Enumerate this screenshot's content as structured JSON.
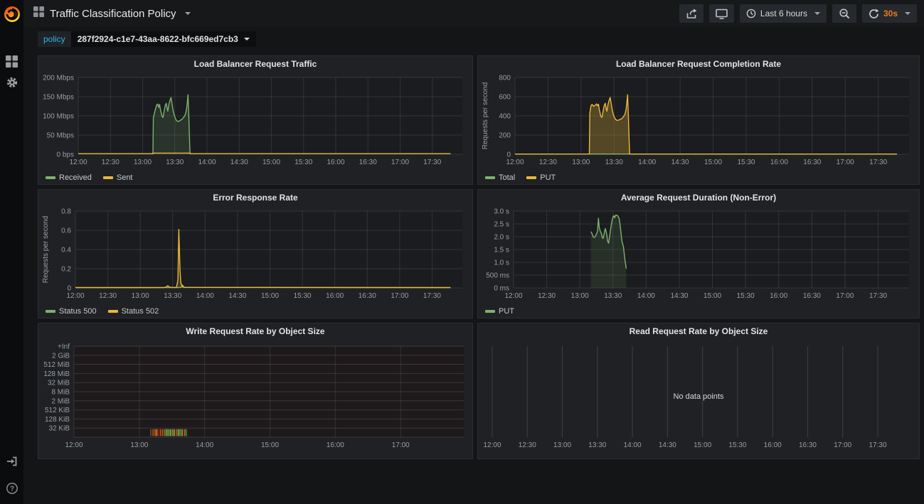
{
  "header": {
    "title": "Traffic Classification Policy",
    "time_range": "Last 6 hours",
    "refresh_interval": "30s"
  },
  "submenu": {
    "label": "policy",
    "value": "287f2924-c1e7-43aa-8622-bfc669ed7cb3"
  },
  "sidebar": {
    "icons": [
      "grafana-logo",
      "dashboards-icon",
      "settings-icon",
      "sign-in-icon",
      "help-icon"
    ]
  },
  "colors": {
    "accent_cyan": "#33b5e5",
    "accent_orange": "#eb7b18",
    "series_green": "#7eb26d",
    "series_yellow": "#eab839",
    "panel_bg": "#1f2124",
    "page_bg": "#141517",
    "grid": "#2b2d30"
  },
  "chart_data": [
    {
      "type": "area",
      "title": "Load Balancer Request Traffic",
      "ylabel": "",
      "xlim": [
        720,
        1078
      ],
      "ylim": [
        0,
        200
      ],
      "x_ticks": [
        [
          720,
          "12:00"
        ],
        [
          750,
          "12:30"
        ],
        [
          780,
          "13:00"
        ],
        [
          810,
          "13:30"
        ],
        [
          840,
          "14:00"
        ],
        [
          870,
          "14:30"
        ],
        [
          900,
          "15:00"
        ],
        [
          930,
          "15:30"
        ],
        [
          960,
          "16:00"
        ],
        [
          990,
          "16:30"
        ],
        [
          1020,
          "17:00"
        ],
        [
          1050,
          "17:30"
        ]
      ],
      "y_ticks": [
        [
          0,
          "0 bps"
        ],
        [
          50,
          "50 Mbps"
        ],
        [
          100,
          "100 Mbps"
        ],
        [
          150,
          "150 Mbps"
        ],
        [
          200,
          "200 Mbps"
        ]
      ],
      "series": [
        {
          "name": "Received",
          "color": "#7eb26d",
          "fill_opacity": 0.16,
          "points": [
            [
              789.6,
              0
            ],
            [
              790,
              96
            ],
            [
              791.5,
              112
            ],
            [
              793,
              128
            ],
            [
              794,
              131
            ],
            [
              795,
              122
            ],
            [
              795.8,
              130
            ],
            [
              796.5,
              118
            ],
            [
              798,
              99
            ],
            [
              799,
              96
            ],
            [
              800,
              112
            ],
            [
              801,
              126
            ],
            [
              802,
              133
            ],
            [
              802.8,
              120
            ],
            [
              803.5,
              112
            ],
            [
              804.5,
              130
            ],
            [
              805.5,
              141
            ],
            [
              806.5,
              148
            ],
            [
              807.5,
              130
            ],
            [
              808.5,
              112
            ],
            [
              810,
              97
            ],
            [
              811.5,
              88
            ],
            [
              813,
              85
            ],
            [
              815,
              88
            ],
            [
              817,
              92
            ],
            [
              818.5,
              97
            ],
            [
              820,
              105
            ],
            [
              821,
              118
            ],
            [
              821.8,
              140
            ],
            [
              822.3,
              155
            ],
            [
              823,
              100
            ],
            [
              823.8,
              30
            ],
            [
              824.2,
              0
            ]
          ]
        },
        {
          "name": "Sent",
          "color": "#eab839",
          "fill_opacity": 0,
          "points": [
            [
              720,
              1.5
            ],
            [
              789,
              1.5
            ],
            [
              790,
              3
            ],
            [
              824,
              3
            ],
            [
              825,
              1.5
            ],
            [
              1067,
              1.5
            ]
          ]
        }
      ]
    },
    {
      "type": "area",
      "title": "Load Balancer Request Completion Rate",
      "ylabel": "Requests per second",
      "xlim": [
        720,
        1078
      ],
      "ylim": [
        0,
        800
      ],
      "x_ticks": [
        [
          720,
          "12:00"
        ],
        [
          750,
          "12:30"
        ],
        [
          780,
          "13:00"
        ],
        [
          810,
          "13:30"
        ],
        [
          840,
          "14:00"
        ],
        [
          870,
          "14:30"
        ],
        [
          900,
          "15:00"
        ],
        [
          930,
          "15:30"
        ],
        [
          960,
          "16:00"
        ],
        [
          990,
          "16:30"
        ],
        [
          1020,
          "17:00"
        ],
        [
          1050,
          "17:30"
        ]
      ],
      "y_ticks": [
        [
          0,
          "0"
        ],
        [
          200,
          "200"
        ],
        [
          400,
          "400"
        ],
        [
          600,
          "600"
        ],
        [
          800,
          "800"
        ]
      ],
      "series": [
        {
          "name": "Total",
          "color": "#7eb26d",
          "fill_opacity": 0,
          "points": [
            [
              720,
              2
            ],
            [
              1067,
              2
            ]
          ]
        },
        {
          "name": "PUT",
          "color": "#eab839",
          "fill_opacity": 0.28,
          "points": [
            [
              720,
              2
            ],
            [
              787.5,
              3
            ],
            [
              788,
              430
            ],
            [
              789,
              505
            ],
            [
              790,
              520
            ],
            [
              791.5,
              500
            ],
            [
              793,
              512
            ],
            [
              794,
              525
            ],
            [
              795,
              505
            ],
            [
              795.8,
              522
            ],
            [
              796.5,
              470
            ],
            [
              798,
              395
            ],
            [
              799,
              385
            ],
            [
              800,
              448
            ],
            [
              801,
              505
            ],
            [
              802,
              532
            ],
            [
              802.8,
              480
            ],
            [
              803.5,
              448
            ],
            [
              804.5,
              520
            ],
            [
              805.5,
              562
            ],
            [
              806.5,
              592
            ],
            [
              807.5,
              520
            ],
            [
              808.5,
              448
            ],
            [
              810,
              390
            ],
            [
              811.5,
              362
            ],
            [
              813,
              352
            ],
            [
              815,
              360
            ],
            [
              817,
              372
            ],
            [
              818.5,
              390
            ],
            [
              820,
              420
            ],
            [
              821,
              472
            ],
            [
              821.8,
              560
            ],
            [
              822.3,
              620
            ],
            [
              823,
              400
            ],
            [
              823.8,
              120
            ],
            [
              824.2,
              2
            ],
            [
              1067,
              2
            ]
          ]
        }
      ]
    },
    {
      "type": "area",
      "title": "Error Response Rate",
      "ylabel": "Requests per second",
      "xlim": [
        720,
        1078
      ],
      "ylim": [
        0,
        0.8
      ],
      "x_ticks": [
        [
          720,
          "12:00"
        ],
        [
          750,
          "12:30"
        ],
        [
          780,
          "13:00"
        ],
        [
          810,
          "13:30"
        ],
        [
          840,
          "14:00"
        ],
        [
          870,
          "14:30"
        ],
        [
          900,
          "15:00"
        ],
        [
          930,
          "15:30"
        ],
        [
          960,
          "16:00"
        ],
        [
          990,
          "16:30"
        ],
        [
          1020,
          "17:00"
        ],
        [
          1050,
          "17:30"
        ]
      ],
      "y_ticks": [
        [
          0,
          "0"
        ],
        [
          0.2,
          "0.2"
        ],
        [
          0.4,
          "0.4"
        ],
        [
          0.6,
          "0.6"
        ],
        [
          0.8,
          "0.8"
        ]
      ],
      "series": [
        {
          "name": "Status 500",
          "color": "#7eb26d",
          "fill_opacity": 0.15,
          "points": [
            [
              720,
              0.003
            ],
            [
              815,
              0.003
            ],
            [
              817.5,
              0.006
            ],
            [
              818.5,
              0.018
            ],
            [
              819.2,
              0.03
            ],
            [
              820,
              0.012
            ],
            [
              821.5,
              0.005
            ],
            [
              1067,
              0.003
            ]
          ]
        },
        {
          "name": "Status 502",
          "color": "#eab839",
          "fill_opacity": 0.2,
          "points": [
            [
              720,
              0.004
            ],
            [
              802,
              0.004
            ],
            [
              804,
              0.01
            ],
            [
              805.5,
              0.022
            ],
            [
              807,
              0.008
            ],
            [
              809,
              0.005
            ],
            [
              813.5,
              0.006
            ],
            [
              814.8,
              0.08
            ],
            [
              815.7,
              0.61
            ],
            [
              816.8,
              0.18
            ],
            [
              817.6,
              0.05
            ],
            [
              819,
              0.012
            ],
            [
              821,
              0.006
            ],
            [
              1067,
              0.004
            ]
          ]
        }
      ]
    },
    {
      "type": "area",
      "title": "Average Request Duration (Non-Error)",
      "ylabel": "",
      "xlim": [
        720,
        1078
      ],
      "ylim": [
        0,
        3
      ],
      "x_ticks": [
        [
          720,
          "12:00"
        ],
        [
          750,
          "12:30"
        ],
        [
          780,
          "13:00"
        ],
        [
          810,
          "13:30"
        ],
        [
          840,
          "14:00"
        ],
        [
          870,
          "14:30"
        ],
        [
          900,
          "15:00"
        ],
        [
          930,
          "15:30"
        ],
        [
          960,
          "16:00"
        ],
        [
          990,
          "16:30"
        ],
        [
          1020,
          "17:00"
        ],
        [
          1050,
          "17:30"
        ]
      ],
      "y_ticks": [
        [
          0,
          "0 ms"
        ],
        [
          0.5,
          "500 ms"
        ],
        [
          1,
          "1.0 s"
        ],
        [
          1.5,
          "1.5 s"
        ],
        [
          2,
          "2.0 s"
        ],
        [
          2.5,
          "2.5 s"
        ],
        [
          3,
          "3.0 s"
        ]
      ],
      "series": [
        {
          "name": "PUT",
          "color": "#7eb26d",
          "fill_opacity": 0.13,
          "points": [
            [
              790,
              2.2
            ],
            [
              791,
              2.12
            ],
            [
              792,
              2.0
            ],
            [
              793,
              1.97
            ],
            [
              794,
              2.02
            ],
            [
              795,
              2.1
            ],
            [
              796,
              2.2
            ],
            [
              796.8,
              2.72
            ],
            [
              797.6,
              2.35
            ],
            [
              798.5,
              2.22
            ],
            [
              799.5,
              2.12
            ],
            [
              800.2,
              1.98
            ],
            [
              801,
              1.93
            ],
            [
              802,
              2.12
            ],
            [
              803,
              2.32
            ],
            [
              803.8,
              2.2
            ],
            [
              804.5,
              2.05
            ],
            [
              805.2,
              1.82
            ],
            [
              806,
              1.75
            ],
            [
              807,
              2.02
            ],
            [
              808,
              2.35
            ],
            [
              809,
              2.6
            ],
            [
              810,
              2.78
            ],
            [
              810.8,
              2.82
            ],
            [
              811.5,
              2.74
            ],
            [
              812.5,
              2.85
            ],
            [
              813.5,
              2.84
            ],
            [
              814.5,
              2.8
            ],
            [
              815.5,
              2.72
            ],
            [
              816.3,
              2.5
            ],
            [
              817,
              2.25
            ],
            [
              818,
              1.85
            ],
            [
              819.5,
              1.6
            ],
            [
              820.5,
              1.2
            ],
            [
              821.5,
              0.9
            ],
            [
              822,
              0.75
            ]
          ]
        }
      ]
    },
    {
      "type": "heatmap",
      "title": "Write Request Rate by Object Size",
      "xlim": [
        720,
        1078
      ],
      "x_ticks": [
        [
          720,
          "12:00"
        ],
        [
          780,
          "13:00"
        ],
        [
          840,
          "14:00"
        ],
        [
          900,
          "15:00"
        ],
        [
          960,
          "16:00"
        ],
        [
          1020,
          "17:00"
        ]
      ],
      "bucket_labels": [
        "+Inf",
        "2 GiB",
        "512 MiB",
        "128 MiB",
        "32 MiB",
        "8 MiB",
        "2 MiB",
        "512 KiB",
        "128 KiB",
        "32 KiB"
      ],
      "cells": {
        "bucket": "32 KiB",
        "start_minute": 790,
        "stripe_colors": [
          "#567d3e",
          "#3e2a1b",
          "#c96a1e",
          "#b12512",
          "#d2691e",
          "#c9a227",
          "#cc6b1f",
          "#a61f0f",
          "#8a1a0c",
          "#d2691e",
          "#b32412",
          "#cc6b1f",
          "#6b4a1a",
          "#8a9a2b",
          "#67a353",
          "#9acd5a",
          "#67a353",
          "#8a9a2b",
          "#b5bb33",
          "#67a353",
          "#5a8f43",
          "#c9c227",
          "#8a9a2b",
          "#b32412",
          "#cc6b1f",
          "#67a353",
          "#9acd5a",
          "#5a8f43",
          "#67a353",
          "#b5bb33",
          "#8a1a0c",
          "#cc6b1f",
          "#67a353",
          "#4f7a38"
        ]
      }
    },
    {
      "type": "empty",
      "title": "Read Request Rate by Object Size",
      "no_data_text": "No data points",
      "xlim": [
        720,
        1078
      ],
      "x_ticks": [
        [
          720,
          "12:00"
        ],
        [
          750,
          "12:30"
        ],
        [
          780,
          "13:00"
        ],
        [
          810,
          "13:30"
        ],
        [
          840,
          "14:00"
        ],
        [
          870,
          "14:30"
        ],
        [
          900,
          "15:00"
        ],
        [
          930,
          "15:30"
        ],
        [
          960,
          "16:00"
        ],
        [
          990,
          "16:30"
        ],
        [
          1020,
          "17:00"
        ],
        [
          1050,
          "17:30"
        ]
      ]
    }
  ]
}
